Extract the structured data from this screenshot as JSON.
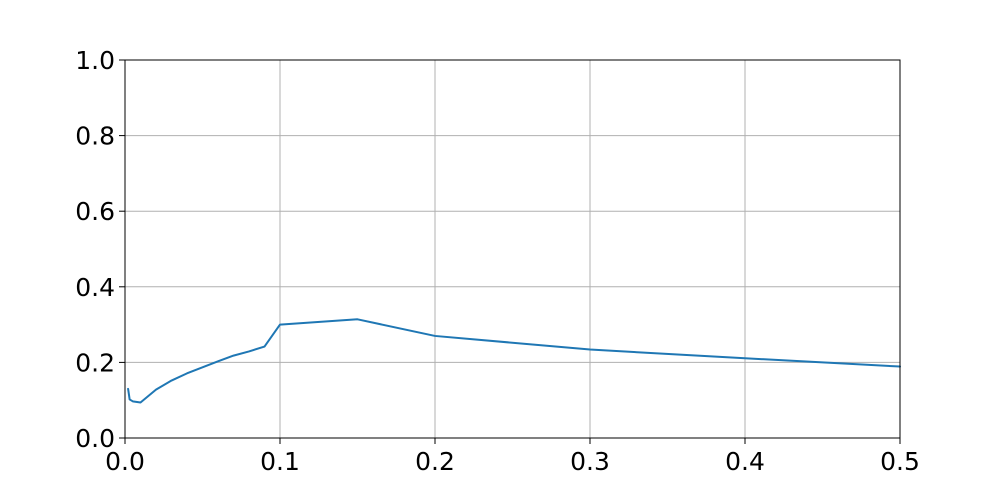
{
  "chart_data": {
    "type": "line",
    "title": "",
    "xlabel": "",
    "ylabel": "",
    "xlim": [
      0.0,
      0.5
    ],
    "ylim": [
      0.0,
      1.0
    ],
    "x_ticks": [
      "0.0",
      "0.1",
      "0.2",
      "0.3",
      "0.4",
      "0.5"
    ],
    "y_ticks": [
      "0.0",
      "0.2",
      "0.4",
      "0.6",
      "0.8",
      "1.0"
    ],
    "grid": true,
    "legend": "none",
    "series": [
      {
        "color": "#1f77b4",
        "x": [
          0.002,
          0.003,
          0.005,
          0.01,
          0.02,
          0.03,
          0.04,
          0.05,
          0.06,
          0.07,
          0.08,
          0.09,
          0.1,
          0.15,
          0.2,
          0.3,
          0.4,
          0.5
        ],
        "y": [
          0.13,
          0.102,
          0.097,
          0.094,
          0.128,
          0.152,
          0.171,
          0.187,
          0.203,
          0.218,
          0.229,
          0.242,
          0.3,
          0.314,
          0.27,
          0.234,
          0.211,
          0.189
        ]
      }
    ],
    "colors": {
      "grid": "#b0b0b0",
      "axes": "#000000"
    }
  }
}
